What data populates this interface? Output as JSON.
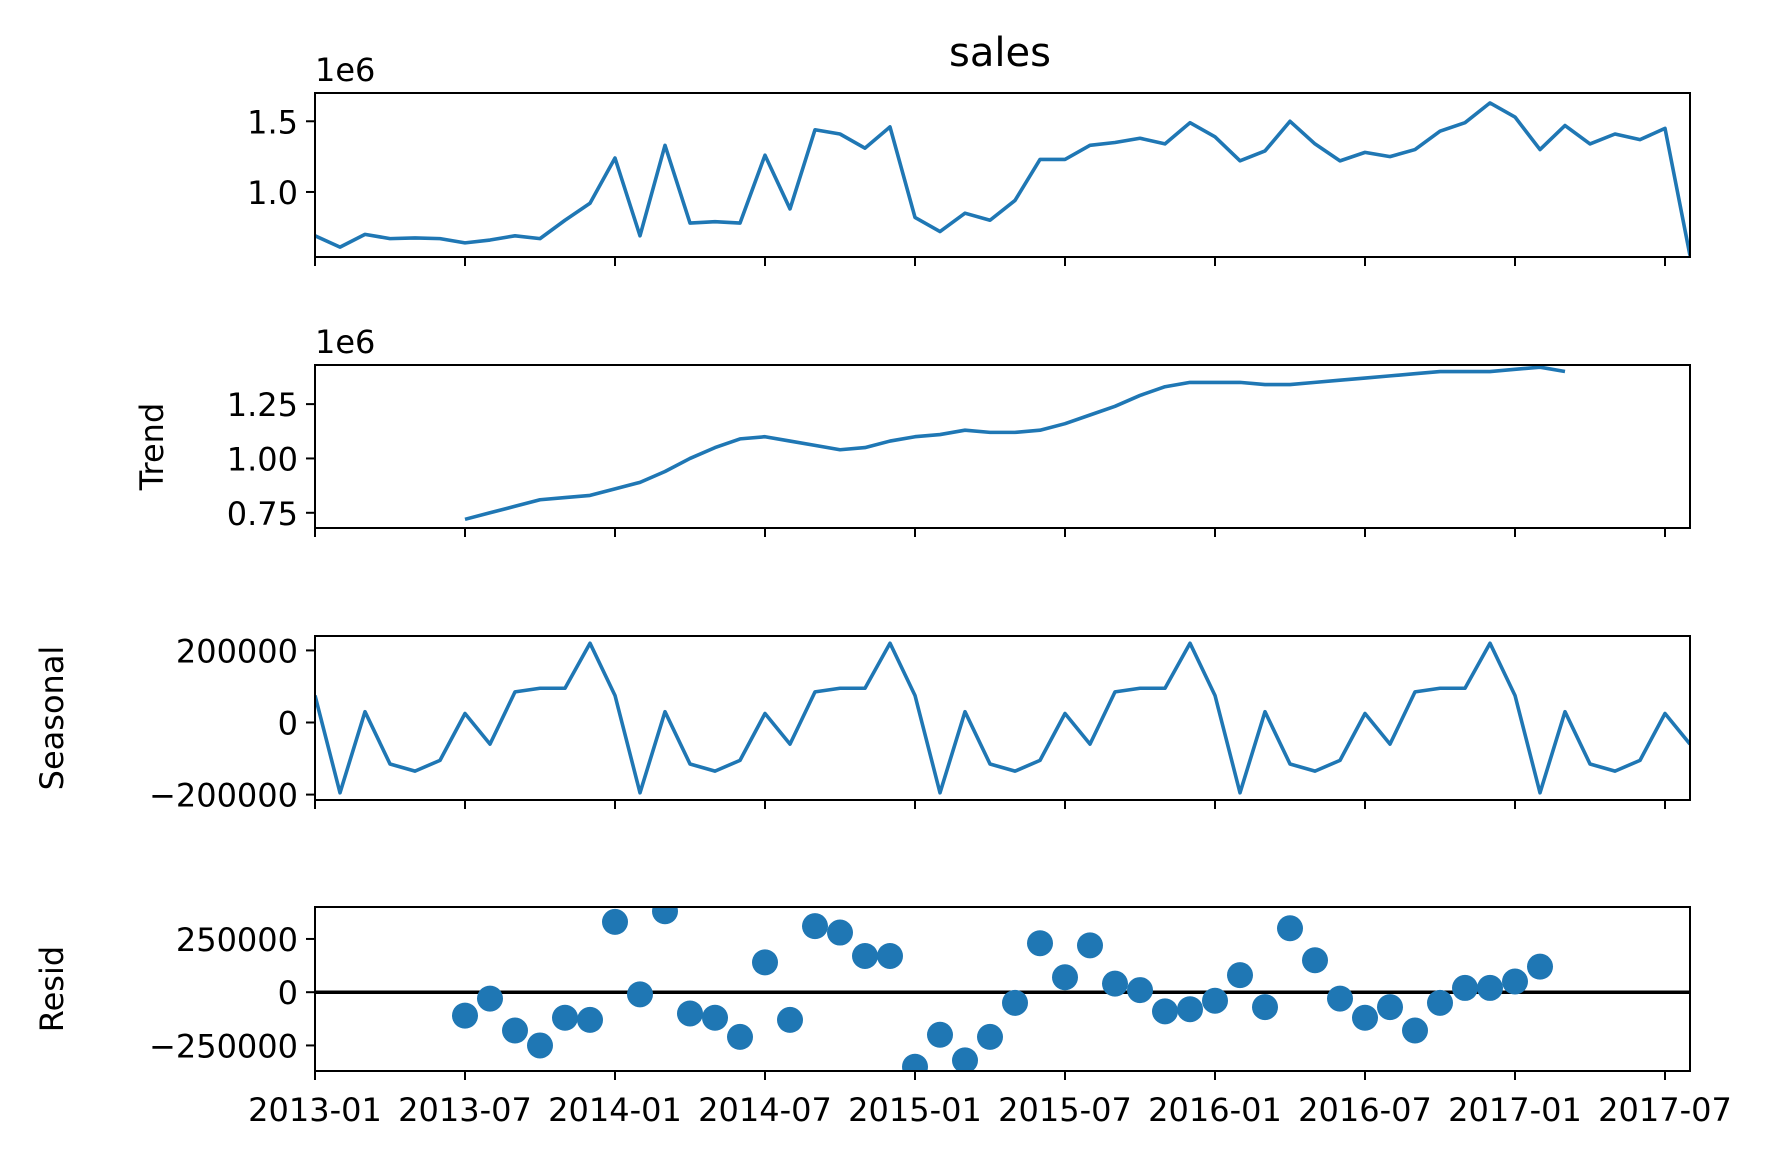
{
  "colors": {
    "series": "#1f77b4",
    "axis": "#000000",
    "zero_line": "#000000"
  },
  "chart_data": {
    "title": "sales",
    "x": [
      "2013-01",
      "2013-02",
      "2013-03",
      "2013-04",
      "2013-05",
      "2013-06",
      "2013-07",
      "2013-08",
      "2013-09",
      "2013-10",
      "2013-11",
      "2013-12",
      "2014-01",
      "2014-02",
      "2014-03",
      "2014-04",
      "2014-05",
      "2014-06",
      "2014-07",
      "2014-08",
      "2014-09",
      "2014-10",
      "2014-11",
      "2014-12",
      "2015-01",
      "2015-02",
      "2015-03",
      "2015-04",
      "2015-05",
      "2015-06",
      "2015-07",
      "2015-08",
      "2015-09",
      "2015-10",
      "2015-11",
      "2015-12",
      "2016-01",
      "2016-02",
      "2016-03",
      "2016-04",
      "2016-05",
      "2016-06",
      "2016-07",
      "2016-08",
      "2016-09",
      "2016-10",
      "2016-11",
      "2016-12",
      "2017-01",
      "2017-02",
      "2017-03",
      "2017-04",
      "2017-05",
      "2017-06",
      "2017-07",
      "2017-08"
    ],
    "x_ticks": [
      "2013-01",
      "2013-07",
      "2014-01",
      "2014-07",
      "2015-01",
      "2015-07",
      "2016-01",
      "2016-07",
      "2017-01",
      "2017-07"
    ],
    "xlim": [
      "2013-01",
      "2017-08"
    ],
    "panels": [
      {
        "type": "line",
        "ylabel": "",
        "offset_label": "1e6",
        "ylim": [
          0.54,
          1.7
        ],
        "yticks": [
          1.0,
          1.5
        ],
        "ytick_labels": [
          "1.0",
          "1.5"
        ],
        "values": [
          0.69,
          0.61,
          0.7,
          0.67,
          0.675,
          0.67,
          0.64,
          0.66,
          0.69,
          0.67,
          0.8,
          0.92,
          1.24,
          0.69,
          1.33,
          0.78,
          0.79,
          0.78,
          1.26,
          0.88,
          1.44,
          1.41,
          1.31,
          1.46,
          0.82,
          0.72,
          0.85,
          0.8,
          0.94,
          1.23,
          1.23,
          1.33,
          1.35,
          1.38,
          1.34,
          1.49,
          1.39,
          1.22,
          1.29,
          1.5,
          1.34,
          1.22,
          1.28,
          1.25,
          1.3,
          1.43,
          1.49,
          1.63,
          1.53,
          1.3,
          1.47,
          1.34,
          1.41,
          1.37,
          1.45,
          0.55
        ]
      },
      {
        "type": "line",
        "ylabel": "Trend",
        "offset_label": "1e6",
        "ylim": [
          0.68,
          1.43
        ],
        "yticks": [
          0.75,
          1.0,
          1.25
        ],
        "ytick_labels": [
          "0.75",
          "1.00",
          "1.25"
        ],
        "values": [
          null,
          null,
          null,
          null,
          null,
          null,
          0.72,
          0.75,
          0.78,
          0.81,
          0.82,
          0.83,
          0.86,
          0.89,
          0.94,
          1.0,
          1.05,
          1.09,
          1.1,
          1.08,
          1.06,
          1.04,
          1.05,
          1.08,
          1.1,
          1.11,
          1.13,
          1.12,
          1.12,
          1.13,
          1.16,
          1.2,
          1.24,
          1.29,
          1.33,
          1.35,
          1.35,
          1.35,
          1.34,
          1.34,
          1.35,
          1.36,
          1.37,
          1.38,
          1.39,
          1.4,
          1.4,
          1.4,
          1.41,
          1.42,
          1.4,
          null,
          null,
          null,
          null,
          null
        ]
      },
      {
        "type": "line",
        "ylabel": "Seasonal",
        "offset_label": "",
        "ylim": [
          -215000,
          240000
        ],
        "yticks": [
          -200000,
          0,
          200000
        ],
        "ytick_labels": [
          "−200000",
          "0",
          "200000"
        ],
        "values": [
          75000,
          -195000,
          30000,
          -115000,
          -135000,
          -105000,
          25000,
          -60000,
          85000,
          95000,
          95000,
          220000,
          75000,
          -195000,
          30000,
          -115000,
          -135000,
          -105000,
          25000,
          -60000,
          85000,
          95000,
          95000,
          220000,
          75000,
          -195000,
          30000,
          -115000,
          -135000,
          -105000,
          25000,
          -60000,
          85000,
          95000,
          95000,
          220000,
          75000,
          -195000,
          30000,
          -115000,
          -135000,
          -105000,
          25000,
          -60000,
          85000,
          95000,
          95000,
          220000,
          75000,
          -195000,
          30000,
          -115000,
          -135000,
          -105000,
          25000,
          -60000
        ]
      },
      {
        "type": "scatter",
        "ylabel": "Resid",
        "offset_label": "",
        "ylim": [
          -370000,
          400000
        ],
        "yticks": [
          -250000,
          0,
          250000
        ],
        "ytick_labels": [
          "−250000",
          "0",
          "250000"
        ],
        "zero_line": true,
        "values": [
          null,
          null,
          null,
          null,
          null,
          null,
          -110000,
          -30000,
          -180000,
          -250000,
          -120000,
          -130000,
          330000,
          -10000,
          380000,
          -100000,
          -120000,
          -210000,
          140000,
          -130000,
          310000,
          280000,
          170000,
          170000,
          -350000,
          -200000,
          -320000,
          -210000,
          -50000,
          230000,
          70000,
          220000,
          40000,
          10000,
          -90000,
          -80000,
          -40000,
          80000,
          -70000,
          300000,
          150000,
          -30000,
          -120000,
          -70000,
          -180000,
          -50000,
          20000,
          20000,
          50000,
          120000,
          null,
          null,
          null,
          null,
          null,
          null
        ]
      }
    ]
  }
}
